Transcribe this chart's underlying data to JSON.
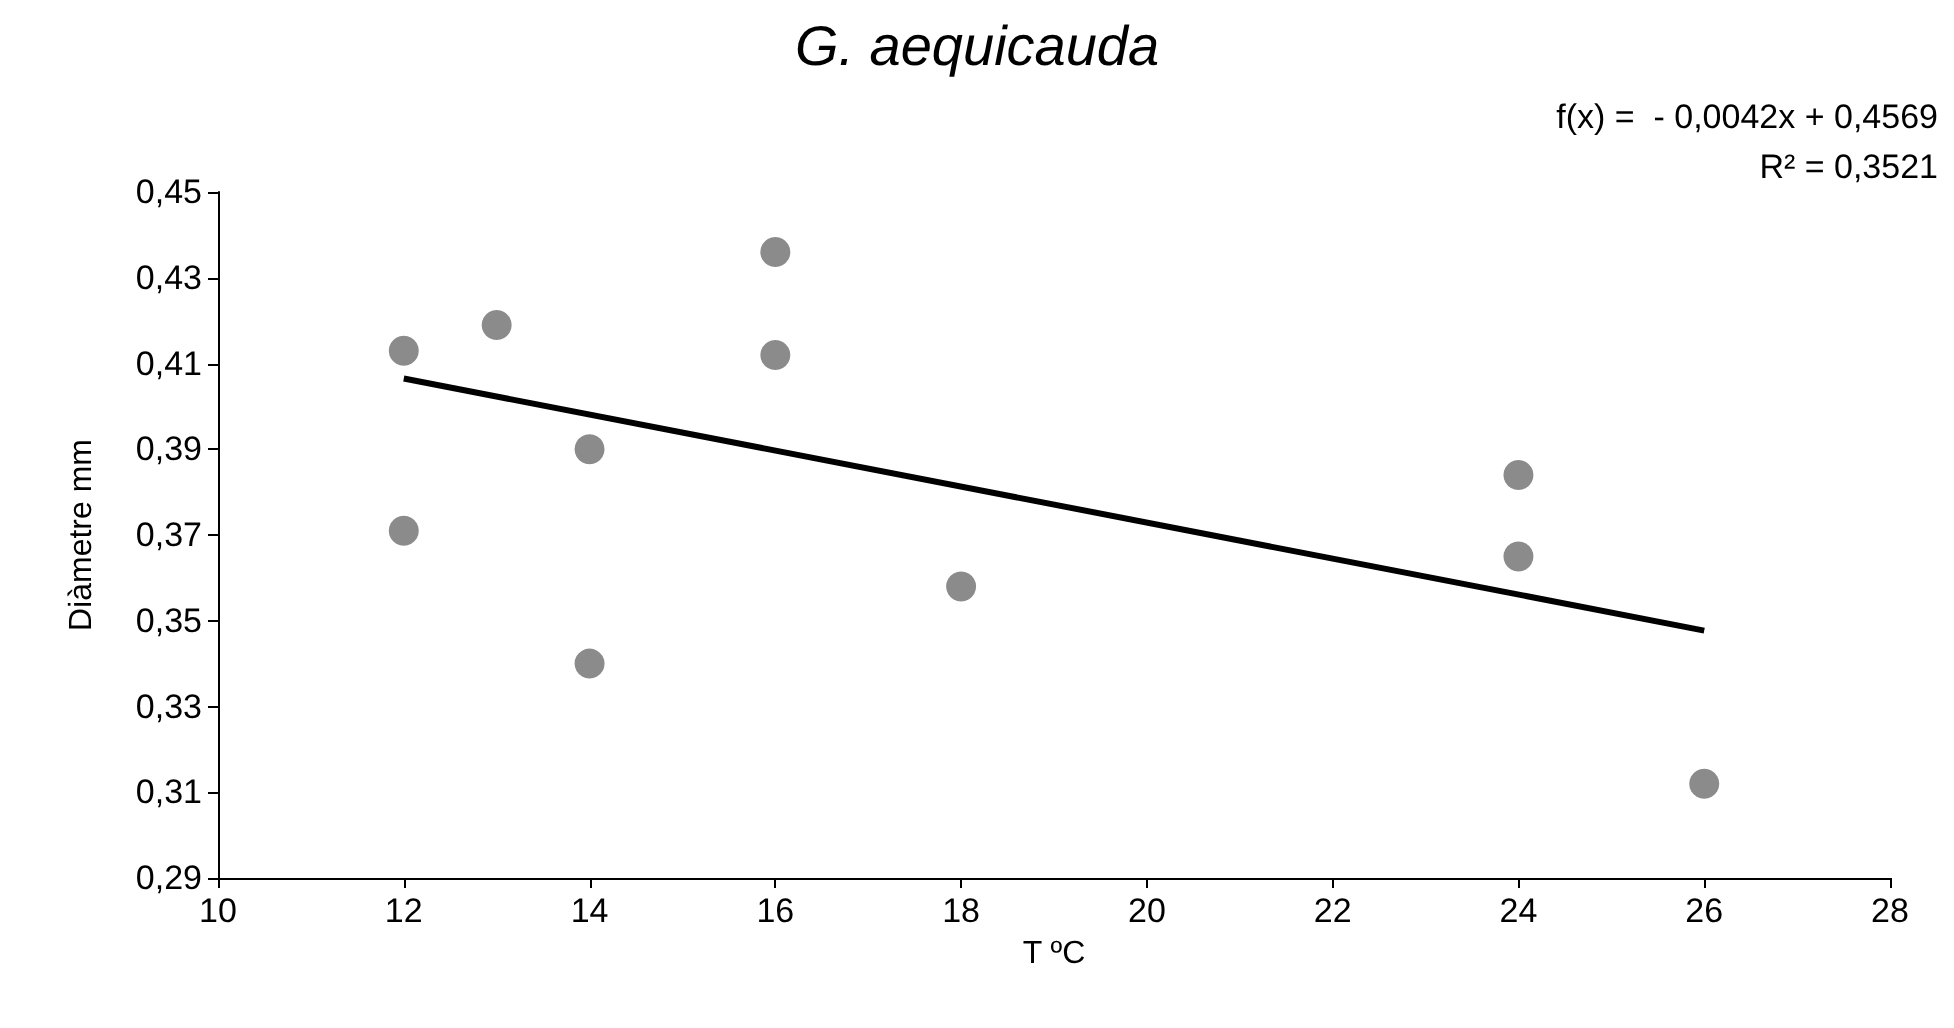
{
  "chart_data": {
    "type": "scatter",
    "title": "G. aequicauda",
    "xlabel": "T ºC",
    "ylabel": "Diàmetre mm",
    "annotations": [
      "f(x) =  - 0,0042x + 0,4569",
      "R² = 0,3521"
    ],
    "series": [
      {
        "type": "scatter",
        "color": "#6e6e6e",
        "marker": "circle",
        "x": [
          12,
          12,
          13,
          14,
          14,
          16,
          16,
          18,
          24,
          24,
          26
        ],
        "values": [
          0.413,
          0.371,
          0.419,
          0.39,
          0.34,
          0.436,
          0.412,
          0.358,
          0.384,
          0.365,
          0.312
        ]
      },
      {
        "type": "line",
        "color": "#000000",
        "marker": "none",
        "line_style": "solid",
        "x": [
          12,
          26
        ],
        "values": [
          0.4065,
          0.3477
        ]
      }
    ],
    "xlim": [
      10,
      28
    ],
    "xticks": [
      10,
      12,
      14,
      16,
      18,
      20,
      22,
      24,
      26,
      28
    ],
    "ylim": [
      0.29,
      0.45
    ],
    "yticks": [
      {
        "value": 0.29,
        "label": "0,29"
      },
      {
        "value": 0.31,
        "label": "0,31"
      },
      {
        "value": 0.33,
        "label": "0,33"
      },
      {
        "value": 0.35,
        "label": "0,35"
      },
      {
        "value": 0.37,
        "label": "0,37"
      },
      {
        "value": 0.39,
        "label": "0,39"
      },
      {
        "value": 0.41,
        "label": "0,41"
      },
      {
        "value": 0.43,
        "label": "0,43"
      },
      {
        "value": 0.45,
        "label": "0,45"
      }
    ],
    "grid": false
  }
}
